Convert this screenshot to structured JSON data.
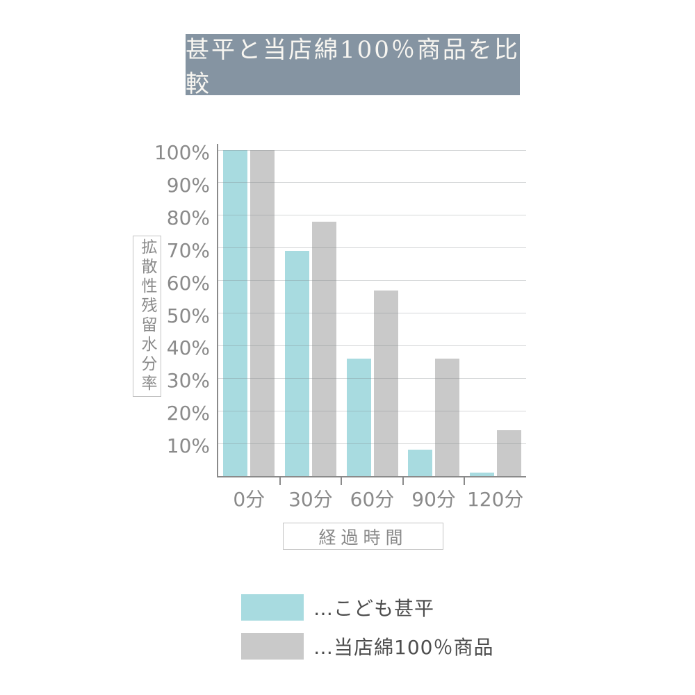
{
  "title": {
    "text": "甚平と当店綿100％商品を比較",
    "bg_color": "#8594a2",
    "fg_color": "#f8f6f1"
  },
  "colors": {
    "axis": "#8a8a8a",
    "grid": "#9aa0a5",
    "tick_text": "#8a8a8a",
    "box_border": "#c3c3c3",
    "legend_text": "#4d4d4d"
  },
  "chart_data": {
    "type": "bar",
    "title": "甚平と当店綿100％商品を比較",
    "categories": [
      "0分",
      "30分",
      "60分",
      "90分",
      "120分"
    ],
    "series": [
      {
        "name": "こども甚平",
        "color": "#a8dbe0",
        "values": [
          100,
          69,
          36,
          8,
          1
        ]
      },
      {
        "name": "当店綿100％商品",
        "color": "#c9c9c9",
        "values": [
          100,
          78,
          57,
          36,
          14
        ]
      }
    ],
    "xlabel": "経過時間",
    "ylabel": "拡散性残留水分率",
    "ylim": [
      0,
      100
    ],
    "yticks": [
      100,
      90,
      80,
      70,
      60,
      50,
      40,
      30,
      20,
      10
    ],
    "ytick_suffix": "%",
    "grid": true,
    "grid_over_bars": true,
    "legend_prefix": "…",
    "legend_position": "bottom-left"
  }
}
